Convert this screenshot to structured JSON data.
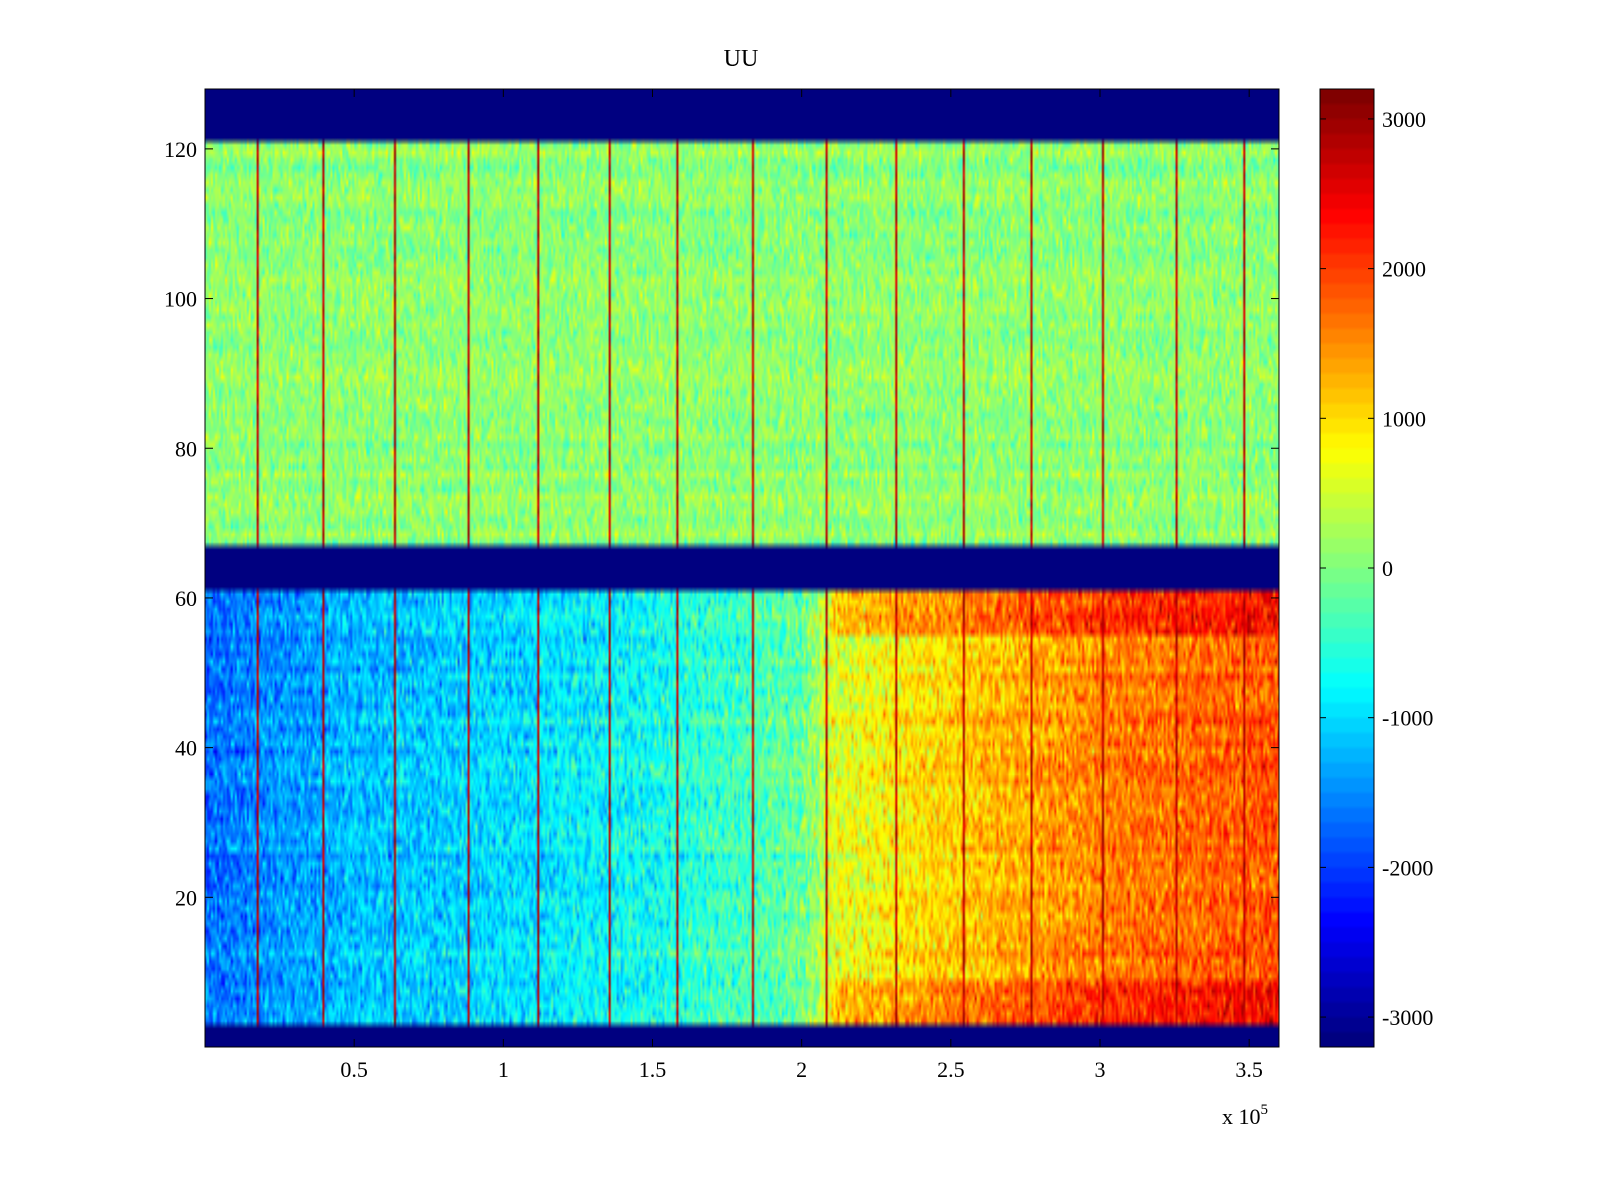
{
  "chart_data": {
    "type": "heatmap",
    "title": "UU",
    "xlabel": "",
    "ylabel": "",
    "x_multiplier_text": "x 10",
    "x_multiplier_exponent": "5",
    "xlim": [
      0,
      3.6
    ],
    "ylim": [
      0,
      128
    ],
    "x_ticks": [
      {
        "value": 0.5,
        "label": "0.5"
      },
      {
        "value": 1,
        "label": "1"
      },
      {
        "value": 1.5,
        "label": "1.5"
      },
      {
        "value": 2,
        "label": "2"
      },
      {
        "value": 2.5,
        "label": "2.5"
      },
      {
        "value": 3,
        "label": "3"
      },
      {
        "value": 3.5,
        "label": "3.5"
      }
    ],
    "y_ticks": [
      {
        "value": 20,
        "label": "20"
      },
      {
        "value": 40,
        "label": "40"
      },
      {
        "value": 60,
        "label": "60"
      },
      {
        "value": 80,
        "label": "80"
      },
      {
        "value": 100,
        "label": "100"
      },
      {
        "value": 120,
        "label": "120"
      }
    ],
    "colorbar": {
      "colormap": "jet",
      "range": [
        -3200,
        3200
      ],
      "ticks": [
        {
          "value": 3000,
          "label": "3000"
        },
        {
          "value": 2000,
          "label": "2000"
        },
        {
          "value": 1000,
          "label": "1000"
        },
        {
          "value": 0,
          "label": "0"
        },
        {
          "value": -1000,
          "label": "-1000"
        },
        {
          "value": -2000,
          "label": "-2000"
        },
        {
          "value": -3000,
          "label": "-3000"
        }
      ]
    },
    "fill_value": -3200,
    "bands": [
      {
        "name": "fill-top",
        "y_range": [
          121,
          128
        ],
        "value": -3200
      },
      {
        "name": "upper-channels",
        "y_range": [
          67,
          121
        ],
        "mean_value": 100,
        "noise": 350
      },
      {
        "name": "fill-middle",
        "y_range": [
          61,
          67
        ],
        "value": -3200
      },
      {
        "name": "lower-channels",
        "y_range": [
          3,
          61
        ],
        "trend": [
          [
            0,
            -1700
          ],
          [
            0.5,
            -1200
          ],
          [
            1.0,
            -1000
          ],
          [
            1.5,
            -700
          ],
          [
            2.0,
            -150
          ],
          [
            2.1,
            600
          ],
          [
            2.5,
            1100
          ],
          [
            3.0,
            1600
          ],
          [
            3.6,
            1900
          ]
        ],
        "noise": 450
      },
      {
        "name": "fill-bottom",
        "y_range": [
          0,
          3
        ],
        "value": -3200
      }
    ],
    "spike_x": [
      0.17,
      0.39,
      0.63,
      0.88,
      1.11,
      1.35,
      1.58,
      1.83,
      2.08,
      2.31,
      2.54,
      2.77,
      3.01,
      3.25,
      3.48
    ],
    "spike_value": 3100
  }
}
